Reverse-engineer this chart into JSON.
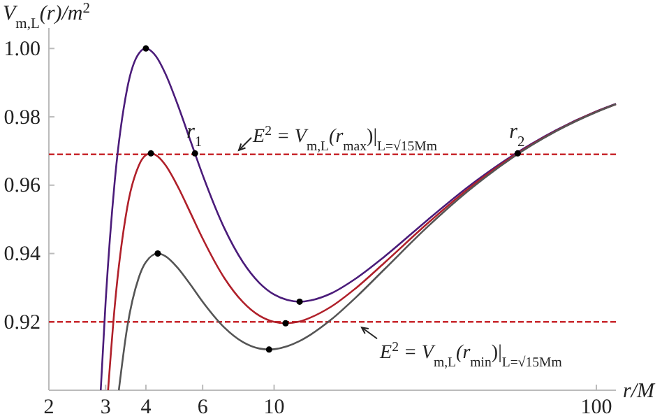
{
  "chart_data": {
    "type": "line",
    "xlabel": "r/M",
    "ylabel": "V$_{m,L}$(r)/m$^{2}$",
    "log": "x",
    "xlim": [
      2,
      115
    ],
    "ylim": [
      0.9,
      1.006
    ],
    "xticks": [
      2,
      3,
      4,
      6,
      10,
      100
    ],
    "yticks": [
      0.92,
      0.94,
      0.96,
      0.98,
      {
        "value": 1,
        "label": "1.00"
      }
    ],
    "series": [
      {
        "color": "#4b1c7a",
        "x": [
          2.897,
          3,
          3.2,
          3.5,
          3.8,
          4,
          4.3,
          4.6,
          5,
          5.5,
          6,
          7,
          8,
          9,
          10,
          11,
          12,
          13,
          15,
          18,
          22,
          30,
          40,
          55,
          75,
          100,
          115
        ],
        "values": [
          0.9,
          0.9259,
          0.9609,
          0.9883,
          0.9985,
          1.0,
          0.9977,
          0.9926,
          0.984,
          0.973,
          0.963,
          0.9475,
          0.9375,
          0.9314,
          0.928,
          0.9264,
          0.9259,
          0.9263,
          0.9283,
          0.9328,
          0.9391,
          0.9499,
          0.9595,
          0.9687,
          0.9761,
          0.9816,
          0.9838
        ]
      },
      {
        "color": "#b0202a",
        "x": [
          3.053,
          3.2,
          3.5,
          3.8,
          4,
          4.146,
          4.3,
          4.6,
          5,
          5.5,
          6,
          7,
          8,
          9,
          10,
          10.854,
          12,
          13,
          15,
          18,
          22,
          30,
          40,
          55,
          75,
          100,
          115
        ],
        "values": [
          0.9,
          0.9243,
          0.9534,
          0.9657,
          0.9688,
          0.9693,
          0.9688,
          0.9659,
          0.96,
          0.9519,
          0.9444,
          0.9329,
          0.9258,
          0.9218,
          0.92,
          0.9196,
          0.9201,
          0.9213,
          0.9244,
          0.93,
          0.9373,
          0.9489,
          0.9589,
          0.9684,
          0.9759,
          0.9815,
          0.9837
        ]
      },
      {
        "color": "#555555",
        "x": [
          3.297,
          3.5,
          3.8,
          4,
          4.354,
          4.6,
          5,
          5.5,
          6,
          7,
          8,
          9,
          9.646,
          10,
          11,
          12,
          13,
          15,
          18,
          22,
          30,
          40,
          55,
          75,
          100,
          115
        ],
        "values": [
          0.9,
          0.9184,
          0.9329,
          0.9375,
          0.94,
          0.9392,
          0.936,
          0.9309,
          0.9259,
          0.9184,
          0.9141,
          0.9122,
          0.9119,
          0.912,
          0.9129,
          0.9144,
          0.9163,
          0.9206,
          0.9273,
          0.9354,
          0.9479,
          0.9583,
          0.9681,
          0.9758,
          0.9814,
          0.9837
        ]
      },
      {
        "type": "scatter",
        "color": "#000000",
        "marker": "circle",
        "x": [
          4,
          4.146,
          4.354,
          12,
          10.854,
          9.646,
          5.68,
          57
        ],
        "values": [
          1.0,
          0.9693,
          0.94,
          0.9259,
          0.9196,
          0.9119,
          0.9693,
          0.9693
        ]
      }
    ],
    "ref_lines": [
      {
        "axis": "y",
        "value": 0.969,
        "label": "E$^{2}$ = V$_{m,L}$(r$_{max}$)|$_{L=√15Mm}$",
        "color": "#c8282d",
        "line_style": "dashed"
      },
      {
        "axis": "y",
        "value": 0.92,
        "label": "E$^{2}$ = V$_{m,L}$(r$_{min}$)|$_{L=√15Mm}$",
        "color": "#c8282d",
        "line_style": "dashed"
      }
    ],
    "annotations": [
      {
        "text": "r$_{1}$",
        "x": 5.68,
        "y": 0.9693
      },
      {
        "text": "r$_{2}$",
        "x": 57,
        "y": 0.9693
      }
    ]
  }
}
